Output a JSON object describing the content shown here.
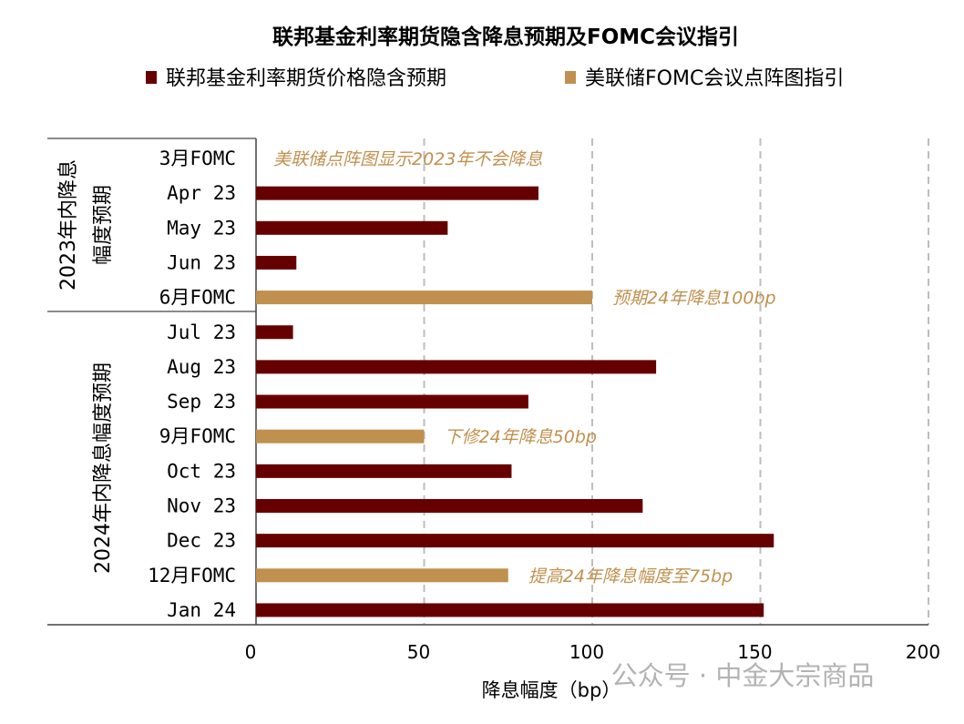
{
  "chart_data": {
    "type": "bar",
    "orientation": "horizontal",
    "title": "联邦基金利率期货隐含降息预期及FOMC会议指引",
    "xlabel": "降息幅度（bp）",
    "xlim": [
      0,
      200
    ],
    "xticks": [
      0,
      50,
      100,
      150,
      200
    ],
    "grid": "vertical dashed",
    "legend_placement": "top",
    "colors": {
      "futures": "#660000",
      "fomc": "#c0904e"
    },
    "legend": [
      {
        "name": "联邦基金利率期货价格隐含预期",
        "color": "#660000"
      },
      {
        "name": "美联储FOMC会议点阵图指引",
        "color": "#c0904e"
      }
    ],
    "groups": [
      {
        "label": "2023年内降息幅度预期",
        "lines": [
          "2023年内降息",
          "幅度预期"
        ]
      },
      {
        "label": "2024年内降息幅度预期",
        "lines": [
          "2024年内降息幅度预期"
        ]
      }
    ],
    "categories": [
      "3月FOMC",
      "Apr 23",
      "May 23",
      "Jun 23",
      "6月FOMC",
      "Jul 23",
      "Aug 23",
      "Sep 23",
      "9月FOMC",
      "Oct 23",
      "Nov 23",
      "Dec 23",
      "12月FOMC",
      "Jan 24"
    ],
    "series_type": [
      "fomc",
      "futures",
      "futures",
      "futures",
      "fomc",
      "futures",
      "futures",
      "futures",
      "fomc",
      "futures",
      "futures",
      "futures",
      "fomc",
      "futures"
    ],
    "values": [
      0,
      84,
      57,
      12,
      100,
      11,
      119,
      81,
      50,
      76,
      115,
      154,
      75,
      151
    ],
    "annotations": [
      {
        "row": 0,
        "text": "美联储点阵图显示2023年不会降息"
      },
      {
        "row": 4,
        "text": "预期24年降息100bp"
      },
      {
        "row": 8,
        "text": "下修24年降息50bp"
      },
      {
        "row": 12,
        "text": "提高24年降息幅度至75bp"
      }
    ]
  },
  "watermark": "公众号 · 中金大宗商品"
}
